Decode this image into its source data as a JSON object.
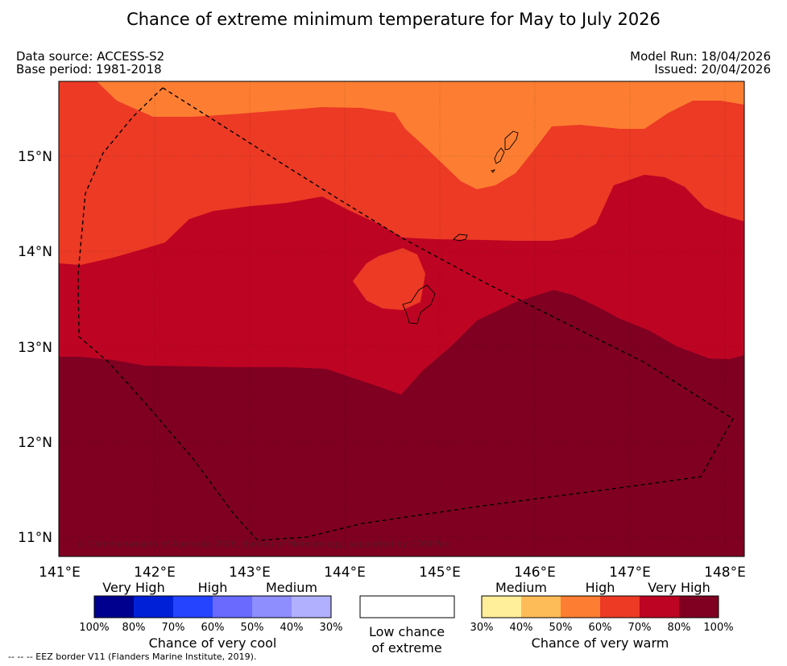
{
  "title": "Chance of extreme minimum temperature for May to July 2026",
  "header": {
    "data_source": "Data source: ACCESS-S2",
    "base_period": "Base period: 1981-2018",
    "model_run": "Model Run: 18/04/2026",
    "issued": "Issued: 20/04/2026"
  },
  "map": {
    "lat_labels": [
      "15°N",
      "14°N",
      "13°N",
      "12°N",
      "11°N"
    ],
    "lon_labels": [
      "141°E",
      "142°E",
      "143°E",
      "144°E",
      "145°E",
      "146°E",
      "147°E",
      "148°E"
    ],
    "copyright": "© Commonwealth of Australia 2026, Bureau of Meteorology, supported by COSPPac",
    "colors": {
      "warm_50_60": "#fd7e32",
      "warm_60_70": "#ec3a25",
      "warm_70_80": "#be0423",
      "warm_80_100": "#7f0021"
    }
  },
  "legend": {
    "cool": {
      "headers": [
        "Very High",
        "High",
        "Medium"
      ],
      "ticks": [
        "100%",
        "80%",
        "70%",
        "60%",
        "50%",
        "40%",
        "30%"
      ],
      "colors": [
        "#00008f",
        "#0020d8",
        "#2444ff",
        "#6a6aff",
        "#8e8eff",
        "#b0b0ff"
      ],
      "label": "Chance of very cool"
    },
    "neutral": {
      "line1": "Low chance",
      "line2": "of extreme"
    },
    "warm": {
      "headers": [
        "Medium",
        "High",
        "Very High"
      ],
      "ticks": [
        "30%",
        "40%",
        "50%",
        "60%",
        "70%",
        "80%",
        "100%"
      ],
      "colors": [
        "#ffee9a",
        "#febc58",
        "#fd7e32",
        "#ec3a25",
        "#be0423",
        "#7f0021"
      ],
      "label": "Chance of very warm"
    }
  },
  "footer": "--  --  -- EEZ border V11 (Flanders Marine Institute, 2019)."
}
